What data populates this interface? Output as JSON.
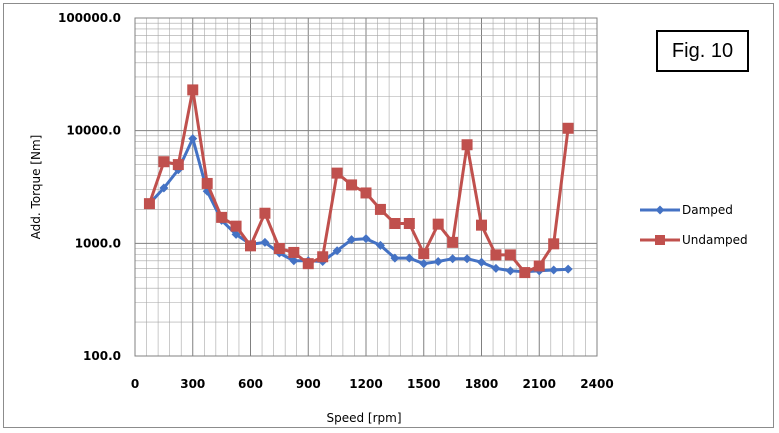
{
  "figure_label": "Fig. 10",
  "colors": {
    "damped": "#4472C4",
    "undamped": "#C0504D",
    "grid": "#a6a6a6"
  },
  "chart_data": {
    "type": "line",
    "title": "",
    "xlabel": "Speed [rpm]",
    "ylabel": "Add. Torque [Nm]",
    "xlim": [
      0,
      2400
    ],
    "ylim": [
      100,
      100000
    ],
    "yscale": "log",
    "grid": true,
    "legend_position": "right",
    "x_ticks": [
      0,
      300,
      600,
      900,
      1200,
      1500,
      1800,
      2100,
      2400
    ],
    "x_tick_labels": [
      "0",
      "300",
      "600",
      "900",
      "1200",
      "1500",
      "1800",
      "2100",
      "2400"
    ],
    "y_ticks": [
      100,
      1000,
      10000,
      100000
    ],
    "y_tick_labels": [
      "100.0",
      "1000.0",
      "10000.0",
      "100000.0"
    ],
    "series": [
      {
        "name": "Damped",
        "marker": "diamond",
        "x": [
          75,
          150,
          225,
          300,
          375,
          450,
          525,
          600,
          675,
          750,
          825,
          900,
          975,
          1050,
          1125,
          1200,
          1275,
          1350,
          1425,
          1500,
          1575,
          1650,
          1725,
          1800,
          1875,
          1950,
          2025,
          2100,
          2175,
          2250
        ],
        "values": [
          2250,
          3100,
          4500,
          8500,
          2900,
          1600,
          1200,
          980,
          1020,
          820,
          700,
          700,
          690,
          860,
          1080,
          1100,
          960,
          740,
          740,
          660,
          690,
          730,
          730,
          680,
          600,
          570,
          560,
          570,
          580,
          590
        ]
      },
      {
        "name": "Undamped",
        "marker": "square",
        "x": [
          75,
          150,
          225,
          300,
          375,
          450,
          525,
          600,
          675,
          750,
          825,
          900,
          975,
          1050,
          1125,
          1200,
          1275,
          1350,
          1425,
          1500,
          1575,
          1650,
          1725,
          1800,
          1875,
          1950,
          2025,
          2100,
          2175,
          2250
        ],
        "values": [
          2250,
          5300,
          5000,
          23000,
          3400,
          1700,
          1420,
          950,
          1850,
          900,
          830,
          660,
          760,
          4200,
          3300,
          2800,
          2000,
          1500,
          1500,
          810,
          1480,
          1020,
          7500,
          1450,
          790,
          790,
          550,
          630,
          990,
          10500
        ]
      }
    ]
  }
}
